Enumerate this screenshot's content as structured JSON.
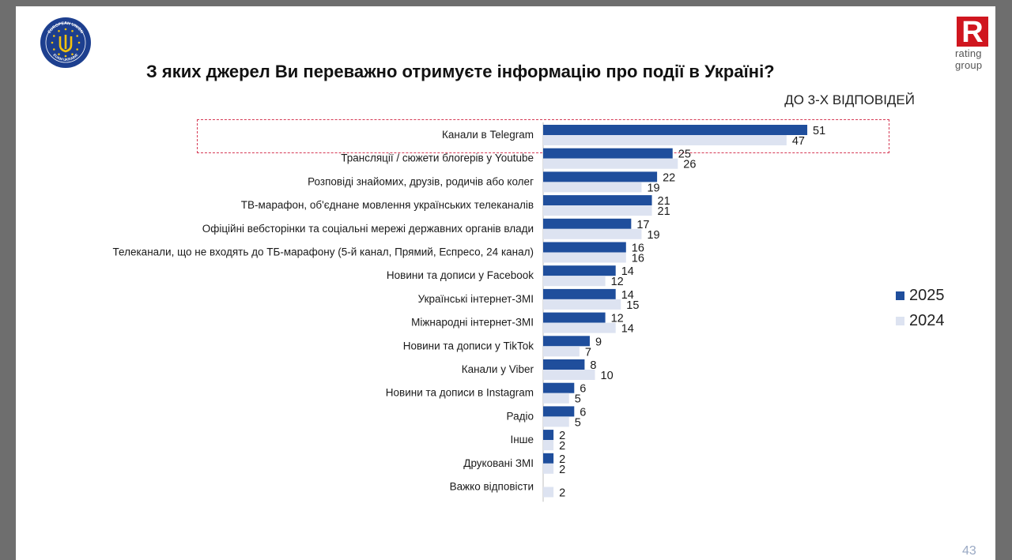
{
  "title": "З яких джерел Ви переважно отримуєте інформацію про події в Україні?",
  "subtitle": "ДО 3-Х ВІДПОВІДЕЙ",
  "logos": {
    "eu_text_top": "EUROPEAN UNION",
    "eu_text_bottom": "EUAM UKRAINE",
    "rating_mark": "R",
    "rating_word1": "rating",
    "rating_word2": "group"
  },
  "page_number": "43",
  "colors": {
    "series_2025": "#1f4e9c",
    "series_2024": "#dde3f1"
  },
  "chart_data": {
    "type": "bar",
    "orientation": "horizontal",
    "categories": [
      "Канали в Telegram",
      "Трансляції / сюжети блогерів у Youtube",
      "Розповіді знайомих, друзів, родичів або колег",
      "ТВ-марафон, об'єднане мовлення українських телеканалів",
      "Офіційні вебсторінки та соціальні мережі державних органів влади",
      "Телеканали, що не входять до ТБ-марафону (5-й канал, Прямий, Еспресо, 24 канал)",
      "Новини та дописи у Facebook",
      "Українські інтернет-ЗМІ",
      "Міжнародні інтернет-ЗМІ",
      "Новини та дописи у TikTok",
      "Канали у Viber",
      "Новини та дописи в Instagram",
      "Радіо",
      "Інше",
      "Друковані ЗМІ",
      "Важко відповісти"
    ],
    "series": [
      {
        "name": "2025",
        "values": [
          51,
          25,
          22,
          21,
          17,
          16,
          14,
          14,
          12,
          9,
          8,
          6,
          6,
          2,
          2,
          null
        ]
      },
      {
        "name": "2024",
        "values": [
          47,
          26,
          19,
          21,
          19,
          16,
          12,
          15,
          14,
          7,
          10,
          5,
          5,
          2,
          2,
          2
        ]
      }
    ],
    "highlighted_category": "Канали в Telegram",
    "legend_position": "right",
    "grid": false
  }
}
